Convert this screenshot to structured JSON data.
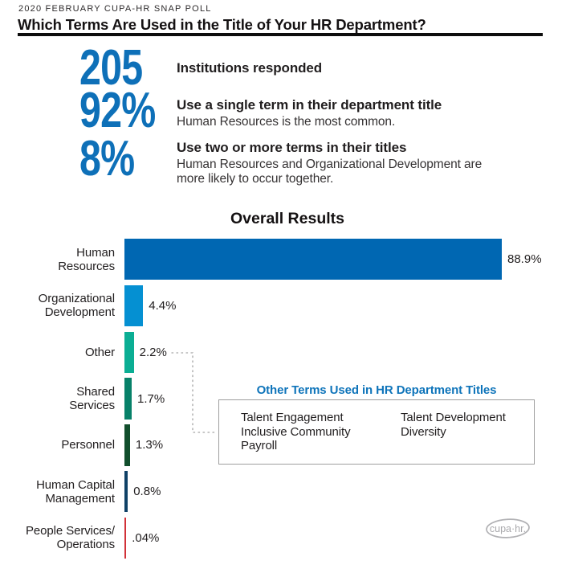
{
  "header": {
    "eyebrow": "2020 FEBRUARY CUPA-HR SNAP POLL",
    "title": "Which Terms Are Used in the Title of Your HR Department?"
  },
  "stats": [
    {
      "value": "205",
      "lead": "Institutions responded",
      "sub": []
    },
    {
      "value": "92%",
      "lead": "Use a single term in their department title",
      "sub": [
        "Human Resources is the most common."
      ]
    },
    {
      "value": "8%",
      "lead": "Use two or more terms in their titles",
      "sub": [
        "Human Resources and Organizational Development are",
        "more likely to occur together."
      ]
    }
  ],
  "chart_data": {
    "type": "bar",
    "orientation": "horizontal",
    "title": "Overall Results",
    "categories": [
      "Human Resources",
      "Organizational Development",
      "Other",
      "Shared Services",
      "Personnel",
      "Human Capital Management",
      "People Services/Operations"
    ],
    "category_lines": [
      [
        "Human",
        "Resources"
      ],
      [
        "Organizational",
        "Development"
      ],
      [
        "Other"
      ],
      [
        "Shared",
        "Services"
      ],
      [
        "Personnel"
      ],
      [
        "Human Capital",
        "Management"
      ],
      [
        "People Services/",
        "Operations"
      ]
    ],
    "values": [
      88.9,
      4.4,
      2.2,
      1.7,
      1.3,
      0.8,
      0.04
    ],
    "value_labels": [
      "88.9%",
      "4.4%",
      "2.2%",
      "1.7%",
      "1.3%",
      "0.8%",
      ".04%"
    ],
    "bar_colors": [
      "#0067b2",
      "#0590d2",
      "#0bae94",
      "#078169",
      "#114e2c",
      "#0f4166",
      "#d13239"
    ],
    "xlim": [
      0,
      88.9
    ],
    "axis": "none",
    "legend": "none"
  },
  "callout": {
    "title": "Other Terms Used in HR Department Titles",
    "columns": [
      [
        "Talent Engagement",
        "Inclusive Community",
        "Payroll"
      ],
      [
        "Talent Development",
        "Diversity"
      ]
    ]
  },
  "logo": {
    "text": "cupa·hr."
  },
  "colors": {
    "stat_number": "#0e70b8",
    "callout_title": "#0e74ba",
    "connector": "#b5b5b5",
    "rule": "#0d0d0d",
    "logo_gray": "#b1b1b4"
  }
}
